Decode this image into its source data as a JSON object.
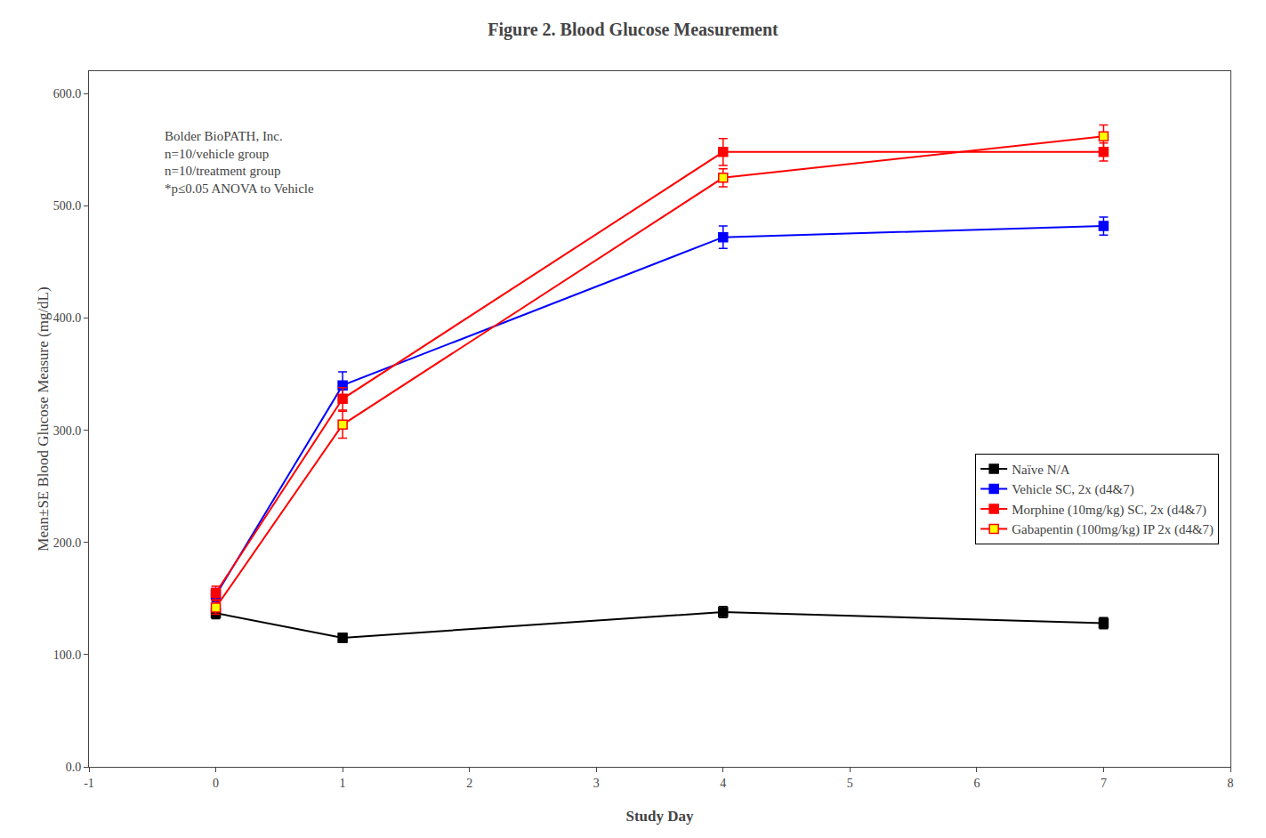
{
  "chart_data": {
    "type": "line",
    "title": "Figure 2. Blood Glucose Measurement",
    "xlabel": "Study Day",
    "ylabel": "Mean±SE Blood Glucose Measure (mg/dL)",
    "annotation": "Bolder BioPATH, Inc.\nn=10/vehicle group\nn=10/treatment group\n*p≤0.05 ANOVA to Vehicle",
    "x": [
      0,
      1,
      4,
      7
    ],
    "series": [
      {
        "name": "Naïve N/A",
        "color": "#000000",
        "marker": "square",
        "values": [
          137.0,
          115.0,
          138.0,
          128.0
        ],
        "yerr": [
          5.0,
          4.0,
          5.0,
          5.0
        ]
      },
      {
        "name": "Vehicle SC, 2x (d4&7)",
        "color": "#0000FF",
        "marker": "square",
        "values": [
          153.0,
          340.0,
          472.0,
          482.0
        ],
        "yerr": [
          6.0,
          12.0,
          10.0,
          8.0
        ]
      },
      {
        "name": "Morphine (10mg/kg) SC, 2x (d4&7)",
        "color": "#FF0000",
        "marker": "square",
        "values": [
          155.0,
          328.0,
          548.0,
          548.0
        ],
        "yerr": [
          6.0,
          10.0,
          12.0,
          8.0
        ]
      },
      {
        "name": "Gabapentin (100mg/kg) IP 2x (d4&7)",
        "color": "#FF0000",
        "marker": "square",
        "colors": [
          "#FFFF00",
          "#FFFF00",
          "#FFFF00",
          "#FFFF00"
        ],
        "values": [
          142.0,
          305.0,
          525.0,
          562.0
        ],
        "yerr": [
          6.0,
          12.0,
          8.0,
          10.0
        ]
      }
    ],
    "xlim": [
      -1,
      8
    ],
    "xticks": [
      -1,
      0,
      1,
      2,
      3,
      4,
      5,
      6,
      7,
      8
    ],
    "ylim": [
      0.0,
      620.0
    ],
    "yticks": [
      {
        "value": 0,
        "label": "0.0"
      },
      {
        "value": 100,
        "label": "100.0"
      },
      {
        "value": 200,
        "label": "200.0"
      },
      {
        "value": 300,
        "label": "300.0"
      },
      {
        "value": 400,
        "label": "400.0"
      },
      {
        "value": 500,
        "label": "500.0"
      },
      {
        "value": 600,
        "label": "600.0"
      }
    ],
    "grid": false,
    "legend": "lower right"
  }
}
